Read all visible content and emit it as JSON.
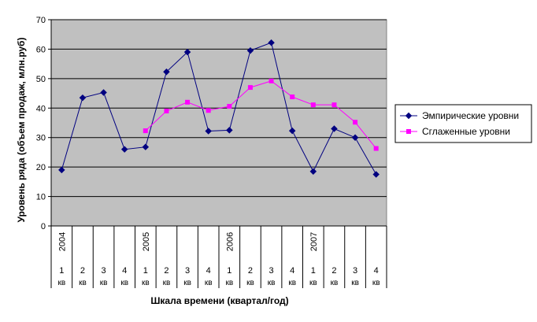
{
  "chart_data": {
    "type": "line",
    "title": "",
    "xlabel": "Шкала времени (квартал/год)",
    "ylabel": "Уровень ряда (объем продаж, млн.руб)",
    "ylim": [
      0,
      70
    ],
    "yticks": [
      "0",
      "10",
      "20",
      "30",
      "40",
      "50",
      "60",
      "70"
    ],
    "grid": true,
    "legend_position": "right",
    "background": "#c0c0c0",
    "years": [
      {
        "label": "2004",
        "start_index": 0
      },
      {
        "label": "2005",
        "start_index": 4
      },
      {
        "label": "2006",
        "start_index": 8
      },
      {
        "label": "2007",
        "start_index": 12
      }
    ],
    "quarter_numbers": [
      "1",
      "2",
      "3",
      "4",
      "1",
      "2",
      "3",
      "4",
      "1",
      "2",
      "3",
      "4",
      "1",
      "2",
      "3",
      "4"
    ],
    "quarter_unit": "кв",
    "series": [
      {
        "name": "Эмпирические уровни",
        "color": "#000080",
        "marker": "diamond",
        "values": [
          19,
          43.5,
          45.3,
          26,
          26.8,
          52.3,
          59,
          32.2,
          32.5,
          59.5,
          62.2,
          32.3,
          18.5,
          33,
          30,
          17.5
        ]
      },
      {
        "name": "Сглаженные уровни",
        "color": "#ff00ff",
        "marker": "square",
        "values": [
          null,
          null,
          null,
          null,
          32.3,
          39,
          42,
          39.2,
          40.6,
          47,
          49.2,
          43.8,
          41.1,
          41.1,
          35.2,
          26.3
        ]
      }
    ]
  }
}
